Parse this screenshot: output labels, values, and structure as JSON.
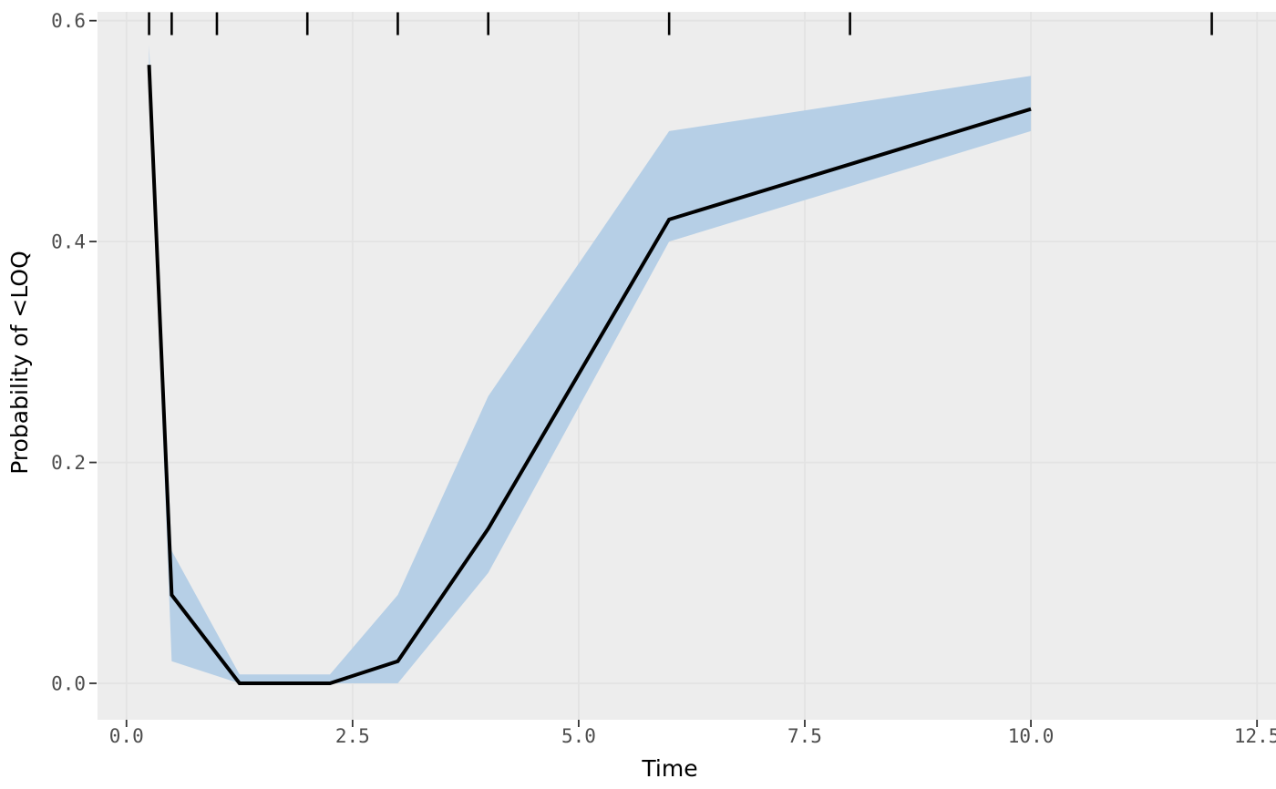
{
  "chart_data": {
    "type": "line",
    "title": "",
    "xlabel": "Time",
    "ylabel": "Probability of <LOQ",
    "x_ticks": [
      0.0,
      2.5,
      5.0,
      7.5,
      10.0,
      12.5
    ],
    "x_tick_labels": [
      "0.0",
      "2.5",
      "5.0",
      "7.5",
      "10.0",
      "12.5"
    ],
    "y_ticks": [
      0.0,
      0.2,
      0.4,
      0.6
    ],
    "y_tick_labels": [
      "0.0",
      "0.2",
      "0.4",
      "0.6"
    ],
    "xlim": [
      -0.32,
      12.71
    ],
    "ylim": [
      -0.033,
      0.608
    ],
    "grid": true,
    "legend": "none",
    "series": [
      {
        "name": "blq-probability-median",
        "type": "line",
        "x": [
          0.25,
          0.5,
          1.25,
          2.25,
          3,
          4,
          6,
          10
        ],
        "y": [
          0.56,
          0.08,
          0.0,
          0.0,
          0.02,
          0.14,
          0.42,
          0.52
        ],
        "color": "#000000",
        "width": 4
      },
      {
        "name": "blq-probability-interval",
        "type": "ribbon",
        "x": [
          0.25,
          0.5,
          1.25,
          2.25,
          3,
          4,
          6,
          10
        ],
        "lower": [
          0.545,
          0.02,
          0.0,
          0.0,
          0.0,
          0.1,
          0.4,
          0.5
        ],
        "upper": [
          0.578,
          0.12,
          0.008,
          0.008,
          0.08,
          0.26,
          0.5,
          0.55
        ],
        "color": "#B6CFE6"
      },
      {
        "name": "observed-time-rug",
        "type": "rug",
        "side": "top",
        "x": [
          0.25,
          0.5,
          1,
          2,
          3,
          4,
          6,
          8,
          12
        ],
        "color": "#000000"
      }
    ],
    "colors": {
      "panel": "#EDEDED",
      "grid": "#E3E3E3",
      "tick_mark": "#333333",
      "tick_label": "#4D4D4D",
      "axis_title": "#000000",
      "background": "#FFFFFF"
    }
  }
}
